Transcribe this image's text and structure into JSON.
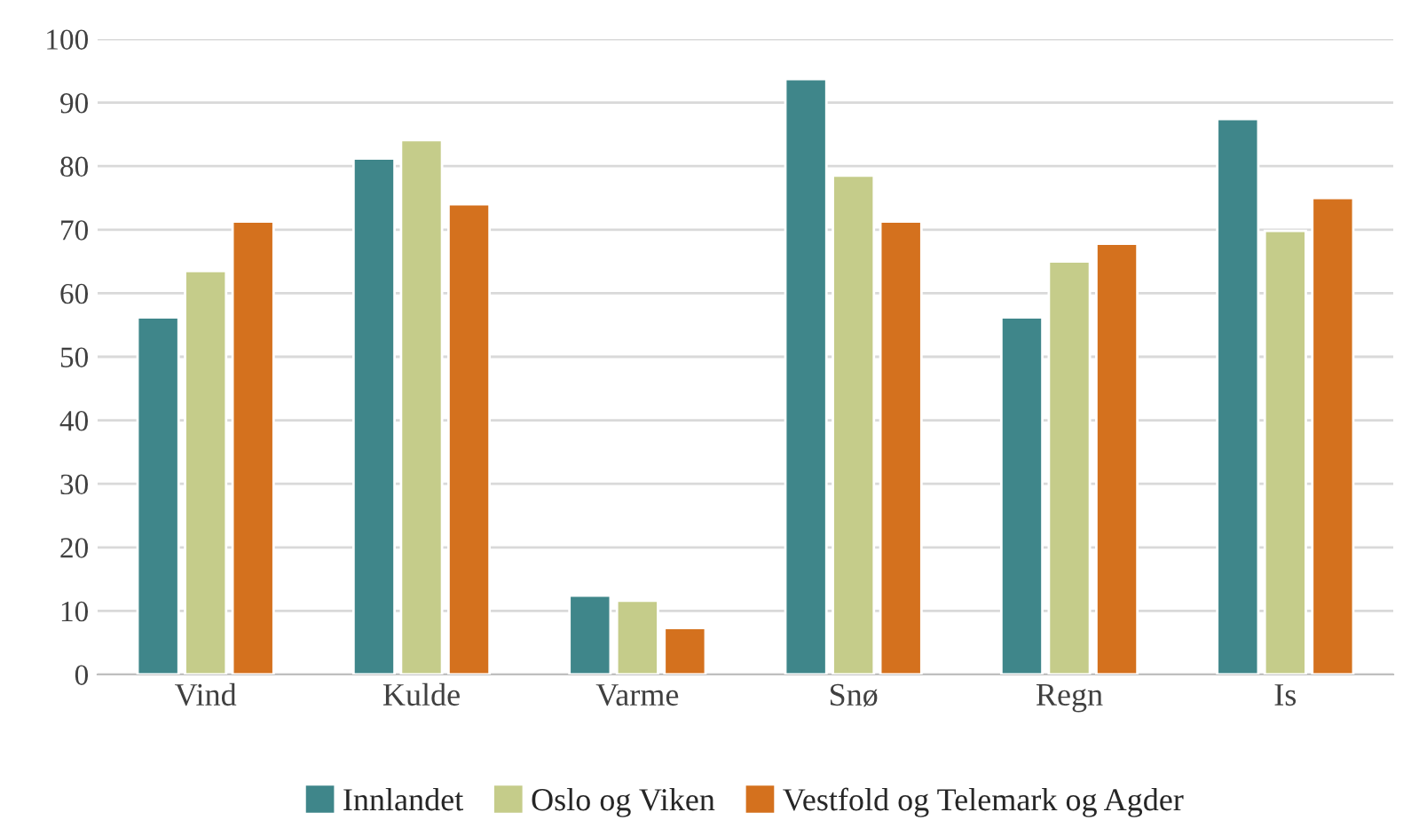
{
  "chart_data": {
    "type": "bar",
    "categories": [
      "Vind",
      "Kulde",
      "Varme",
      "Snø",
      "Regn",
      "Is"
    ],
    "series": [
      {
        "name": "Innlandet",
        "color": "#3f868a",
        "values": [
          56.2,
          81.2,
          12.4,
          93.7,
          56.2,
          87.4
        ]
      },
      {
        "name": "Oslo og Viken",
        "color": "#c5cc8a",
        "values": [
          63.5,
          84.1,
          11.6,
          78.5,
          65.0,
          69.8
        ]
      },
      {
        "name": "Vestfold og Telemark og Agder",
        "color": "#d4711e",
        "values": [
          71.3,
          74.0,
          7.3,
          71.3,
          67.8,
          75.0
        ]
      }
    ],
    "ylim": [
      0,
      100
    ],
    "yticks": [
      0,
      10,
      20,
      30,
      40,
      50,
      60,
      70,
      80,
      90,
      100
    ],
    "grid": "y",
    "legend": "bottom"
  }
}
